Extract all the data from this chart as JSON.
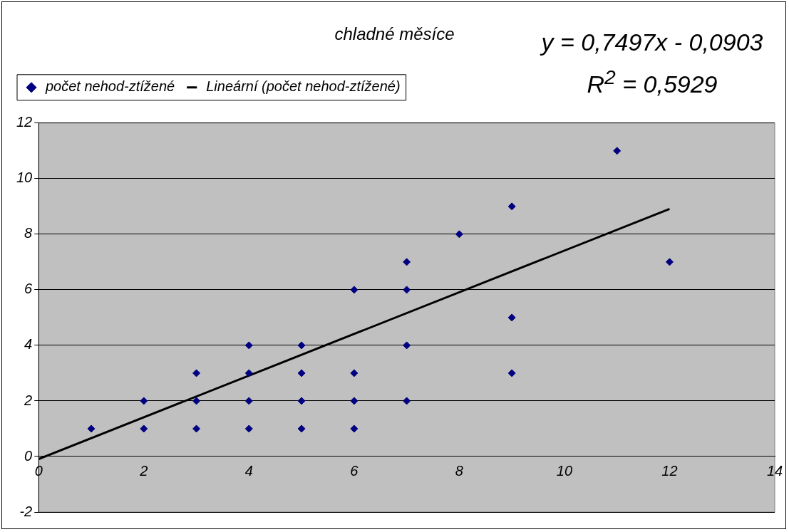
{
  "chart_data": {
    "type": "scatter",
    "title": "chladné měsíce",
    "annotations": [
      "y = 0,7497x - 0,0903",
      "R$^{2}$ = 0,5929"
    ],
    "series": [
      {
        "name": "počet nehod-ztížené",
        "color": "#000080",
        "x": [
          1,
          2,
          2,
          3,
          3,
          3,
          4,
          4,
          4,
          4,
          5,
          5,
          5,
          5,
          6,
          6,
          6,
          6,
          7,
          7,
          7,
          7,
          8,
          9,
          9,
          9,
          11,
          12
        ],
        "values": [
          1,
          2,
          1,
          3,
          2,
          1,
          4,
          3,
          2,
          1,
          4,
          3,
          2,
          1,
          6,
          3,
          2,
          1,
          7,
          6,
          4,
          2,
          8,
          9,
          5,
          3,
          11,
          7
        ]
      },
      {
        "name": "Lineární (počet nehod-ztížené)",
        "type": "line",
        "marker": "none",
        "color": "#000000",
        "x": [
          0,
          12
        ],
        "values": [
          -0.09,
          8.91
        ]
      }
    ],
    "xlim": [
      0,
      14
    ],
    "xticks": [
      0,
      2,
      4,
      6,
      8,
      10,
      12,
      14
    ],
    "ylim": [
      -2,
      12
    ],
    "yticks": [
      -2,
      0,
      2,
      4,
      6,
      8,
      10,
      12
    ],
    "grid": "y",
    "legend": "top left",
    "marker": "diamond",
    "line_style": "solid"
  }
}
